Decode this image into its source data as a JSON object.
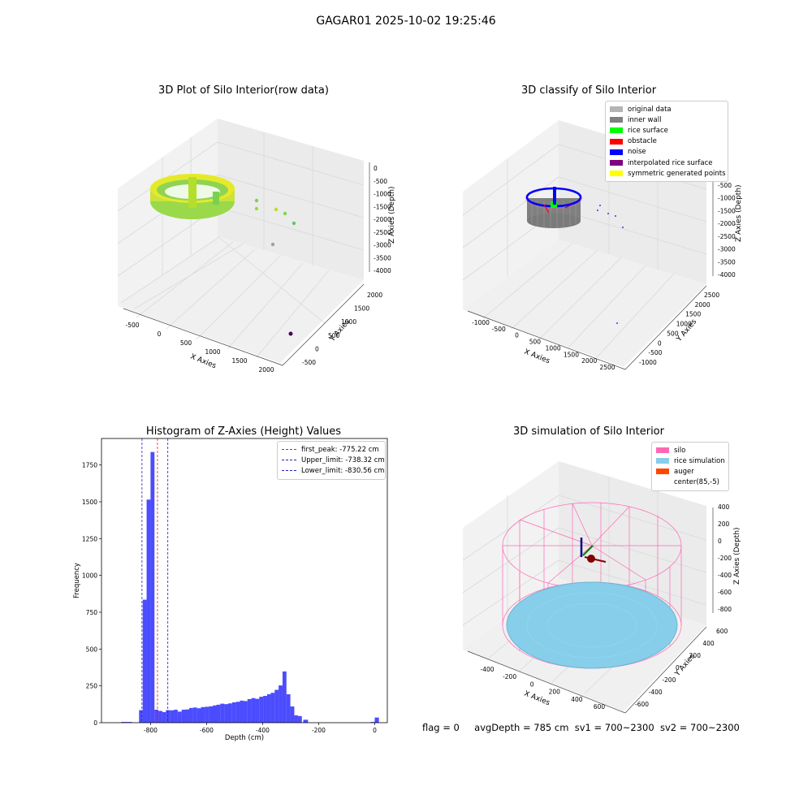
{
  "figure": {
    "suptitle": "GAGAR01 2025-10-02 19:25:46",
    "status": {
      "flag": "flag = 0",
      "avgDepth": "avgDepth = 785 cm",
      "sv1": "sv1 = 700~2300",
      "sv2": "sv2 = 700~2300"
    }
  },
  "colors": {
    "hist_bar": "#0000ff",
    "first_peak": "#e41a1c",
    "limit_lines": "#1f1fbf",
    "original_data": "#b4b4b4",
    "inner_wall": "#808080",
    "rice_surface": "#00ff00",
    "obstacle": "#ff0000",
    "noise": "#0000ff",
    "interpolated": "#800080",
    "symmetric": "#ffff00",
    "silo": "#ff69b4",
    "rice_sim": "#87ceeb",
    "auger": "#ff4500"
  },
  "chart_data": [
    {
      "type": "scatter",
      "subtype": "3d",
      "title": "3D Plot of Silo Interior(row data)",
      "xlabel": "X Axies",
      "ylabel": "Y Axies",
      "zlabel": "Z Axies (Depth)",
      "x_ticks": [
        "-500",
        "0",
        "500",
        "1000",
        "1500",
        "2000"
      ],
      "y_ticks": [
        "-500",
        "0",
        "500",
        "1000",
        "1500",
        "2000"
      ],
      "z_ticks": [
        "0",
        "-500",
        "-1000",
        "-1500",
        "-2000",
        "-2500",
        "-3000",
        "-3500",
        "-4000"
      ],
      "colormap": "viridis"
    },
    {
      "type": "scatter",
      "subtype": "3d",
      "title": "3D classify of Silo Interior",
      "xlabel": "X Axies",
      "ylabel": "Y Axies",
      "zlabel": "Z Axies (Depth)",
      "x_ticks": [
        "-1000",
        "-500",
        "0",
        "500",
        "1000",
        "1500",
        "2000",
        "2500"
      ],
      "y_ticks": [
        "-1000",
        "-500",
        "0",
        "500",
        "1000",
        "1500",
        "2000",
        "2500"
      ],
      "z_ticks": [
        "0",
        "-500",
        "-1000",
        "-1500",
        "-2000",
        "-2500",
        "-3000",
        "-3500",
        "-4000"
      ],
      "legend": [
        "original data",
        "inner wall",
        "rice surface",
        "obstacle",
        "noise",
        "interpolated rice surface",
        "symmetric generated points"
      ],
      "legend_position": "top-right"
    },
    {
      "type": "bar",
      "subtype": "histogram",
      "title": "Histogram of Z-Axies (Height) Values",
      "xlabel": "Depth (cm)",
      "ylabel": "Frequency",
      "xlim": [
        -975,
        45
      ],
      "ylim": [
        0,
        1930
      ],
      "x_ticks": [
        -800,
        -600,
        -400,
        -200,
        0
      ],
      "y_ticks": [
        0,
        250,
        500,
        750,
        1000,
        1250,
        1500,
        1750
      ],
      "bins": [
        {
          "x0": -905,
          "x1": -885,
          "count": 5
        },
        {
          "x0": -885,
          "x1": -866,
          "count": 5
        },
        {
          "x0": -841,
          "x1": -828,
          "count": 85
        },
        {
          "x0": -828,
          "x1": -814,
          "count": 835
        },
        {
          "x0": -814,
          "x1": -800,
          "count": 1515
        },
        {
          "x0": -800,
          "x1": -786,
          "count": 1838
        },
        {
          "x0": -786,
          "x1": -772,
          "count": 88
        },
        {
          "x0": -772,
          "x1": -758,
          "count": 80
        },
        {
          "x0": -758,
          "x1": -745,
          "count": 72
        },
        {
          "x0": -745,
          "x1": -731,
          "count": 85
        },
        {
          "x0": -731,
          "x1": -717,
          "count": 84
        },
        {
          "x0": -717,
          "x1": -703,
          "count": 88
        },
        {
          "x0": -703,
          "x1": -689,
          "count": 75
        },
        {
          "x0": -689,
          "x1": -675,
          "count": 88
        },
        {
          "x0": -675,
          "x1": -662,
          "count": 90
        },
        {
          "x0": -662,
          "x1": -648,
          "count": 100
        },
        {
          "x0": -648,
          "x1": -634,
          "count": 103
        },
        {
          "x0": -634,
          "x1": -620,
          "count": 98
        },
        {
          "x0": -620,
          "x1": -606,
          "count": 106
        },
        {
          "x0": -606,
          "x1": -592,
          "count": 108
        },
        {
          "x0": -592,
          "x1": -578,
          "count": 111
        },
        {
          "x0": -578,
          "x1": -565,
          "count": 117
        },
        {
          "x0": -565,
          "x1": -551,
          "count": 122
        },
        {
          "x0": -551,
          "x1": -537,
          "count": 129
        },
        {
          "x0": -537,
          "x1": -523,
          "count": 126
        },
        {
          "x0": -523,
          "x1": -509,
          "count": 131
        },
        {
          "x0": -509,
          "x1": -495,
          "count": 138
        },
        {
          "x0": -495,
          "x1": -481,
          "count": 142
        },
        {
          "x0": -481,
          "x1": -468,
          "count": 150
        },
        {
          "x0": -468,
          "x1": -454,
          "count": 147
        },
        {
          "x0": -454,
          "x1": -440,
          "count": 160
        },
        {
          "x0": -440,
          "x1": -426,
          "count": 167
        },
        {
          "x0": -426,
          "x1": -412,
          "count": 162
        },
        {
          "x0": -412,
          "x1": -398,
          "count": 176
        },
        {
          "x0": -398,
          "x1": -384,
          "count": 182
        },
        {
          "x0": -384,
          "x1": -371,
          "count": 193
        },
        {
          "x0": -371,
          "x1": -357,
          "count": 203
        },
        {
          "x0": -357,
          "x1": -343,
          "count": 223
        },
        {
          "x0": -343,
          "x1": -329,
          "count": 253
        },
        {
          "x0": -329,
          "x1": -315,
          "count": 348
        },
        {
          "x0": -315,
          "x1": -301,
          "count": 193
        },
        {
          "x0": -301,
          "x1": -287,
          "count": 110
        },
        {
          "x0": -287,
          "x1": -274,
          "count": 50
        },
        {
          "x0": -274,
          "x1": -260,
          "count": 45
        },
        {
          "x0": -255,
          "x1": -238,
          "count": 20
        },
        {
          "x0": -15,
          "x1": 0,
          "count": 5
        },
        {
          "x0": 0,
          "x1": 15,
          "count": 35
        }
      ],
      "vlines": [
        {
          "label": "first_peak: -775.22 cm",
          "x": -775.22,
          "color": "#e41a1c"
        },
        {
          "label": "Upper_limit: -738.32 cm",
          "x": -738.32,
          "color": "#1f1fbf"
        },
        {
          "label": "Lower_limit: -830.56 cm",
          "x": -830.56,
          "color": "#1f1fbf"
        }
      ],
      "legend_position": "top-right"
    },
    {
      "type": "scatter",
      "subtype": "3d-surface",
      "title": "3D simulation of Silo Interior",
      "xlabel": "X Axies",
      "ylabel": "Y Axies",
      "zlabel": "Z Axies (Depth)",
      "x_ticks": [
        "-400",
        "-200",
        "0",
        "200",
        "400",
        "600"
      ],
      "y_ticks": [
        "600",
        "400",
        "200",
        "0",
        "-200",
        "-400",
        "-600"
      ],
      "z_ticks": [
        "400",
        "200",
        "0",
        "-200",
        "-400",
        "-600",
        "-800"
      ],
      "legend": [
        "silo",
        "rice simulation",
        "auger",
        "center(85,-5)"
      ],
      "legend_position": "top-right"
    }
  ]
}
